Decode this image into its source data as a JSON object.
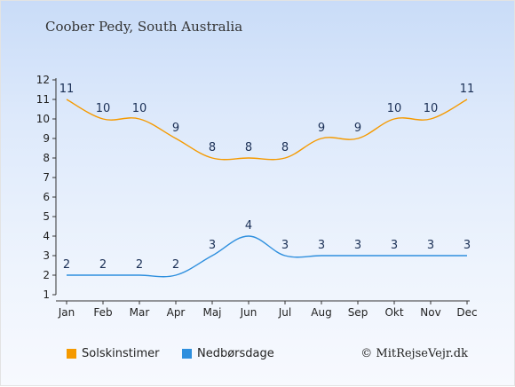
{
  "chart_data": {
    "type": "line",
    "title": "Coober Pedy, South Australia",
    "categories": [
      "Jan",
      "Feb",
      "Mar",
      "Apr",
      "Maj",
      "Jun",
      "Jul",
      "Aug",
      "Sep",
      "Okt",
      "Nov",
      "Dec"
    ],
    "ylim": [
      1,
      12
    ],
    "yticks": [
      1,
      2,
      3,
      4,
      5,
      6,
      7,
      8,
      9,
      10,
      11,
      12
    ],
    "grid": false,
    "legend_position": "bottom-left",
    "series": [
      {
        "name": "Solskinstimer",
        "color": "#f59a00",
        "values": [
          11,
          10,
          10,
          9,
          8,
          8,
          8,
          9,
          9,
          10,
          10,
          11
        ]
      },
      {
        "name": "Nedbørsdage",
        "color": "#2e8fde",
        "values": [
          2,
          2,
          2,
          2,
          3,
          4,
          3,
          3,
          3,
          3,
          3,
          3
        ]
      }
    ]
  },
  "legend": {
    "sunshine_label": "Solskinstimer",
    "rain_label": "Nedbørsdage"
  },
  "copyright": "© MitRejseVejr.dk"
}
